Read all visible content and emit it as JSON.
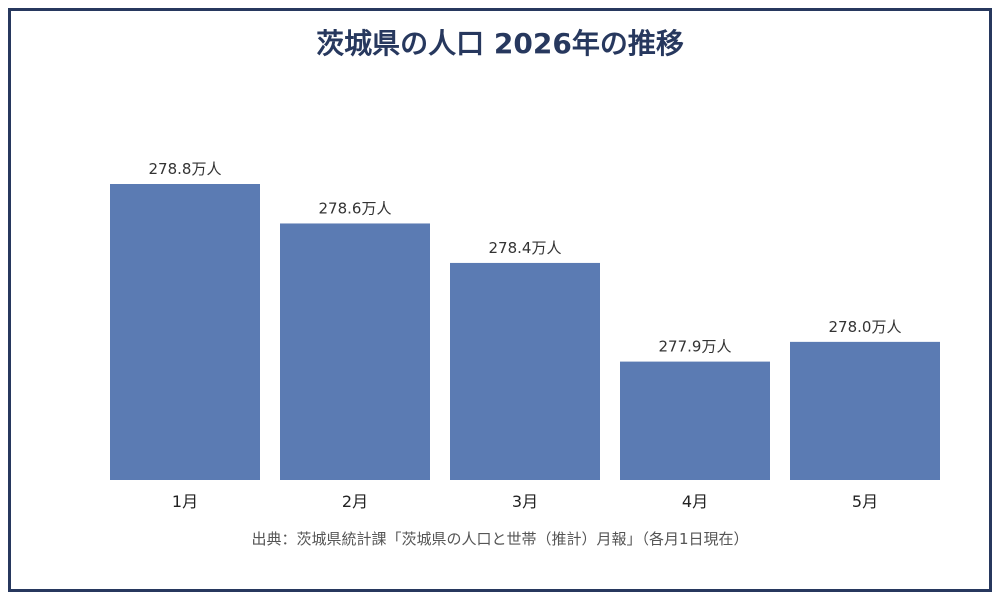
{
  "chart_data": {
    "type": "bar",
    "title": "茨城県の人口 2026年の推移",
    "categories": [
      "1月",
      "2月",
      "3月",
      "4月",
      "5月"
    ],
    "values": [
      278.8,
      278.6,
      278.4,
      277.9,
      278.0
    ],
    "value_labels": [
      "278.8万人",
      "278.6万人",
      "278.4万人",
      "277.9万人",
      "278.0万人"
    ],
    "xlabel": "",
    "ylabel": "",
    "ylim": [
      277.3,
      279.0
    ],
    "grid": false,
    "bar_color": "#5b7bb3"
  },
  "source": "出典：茨城県統計課「茨城県の人口と世帯（推計）月報」（各月1日現在）",
  "colors": {
    "frame": "#27385e",
    "title": "#27385e"
  }
}
